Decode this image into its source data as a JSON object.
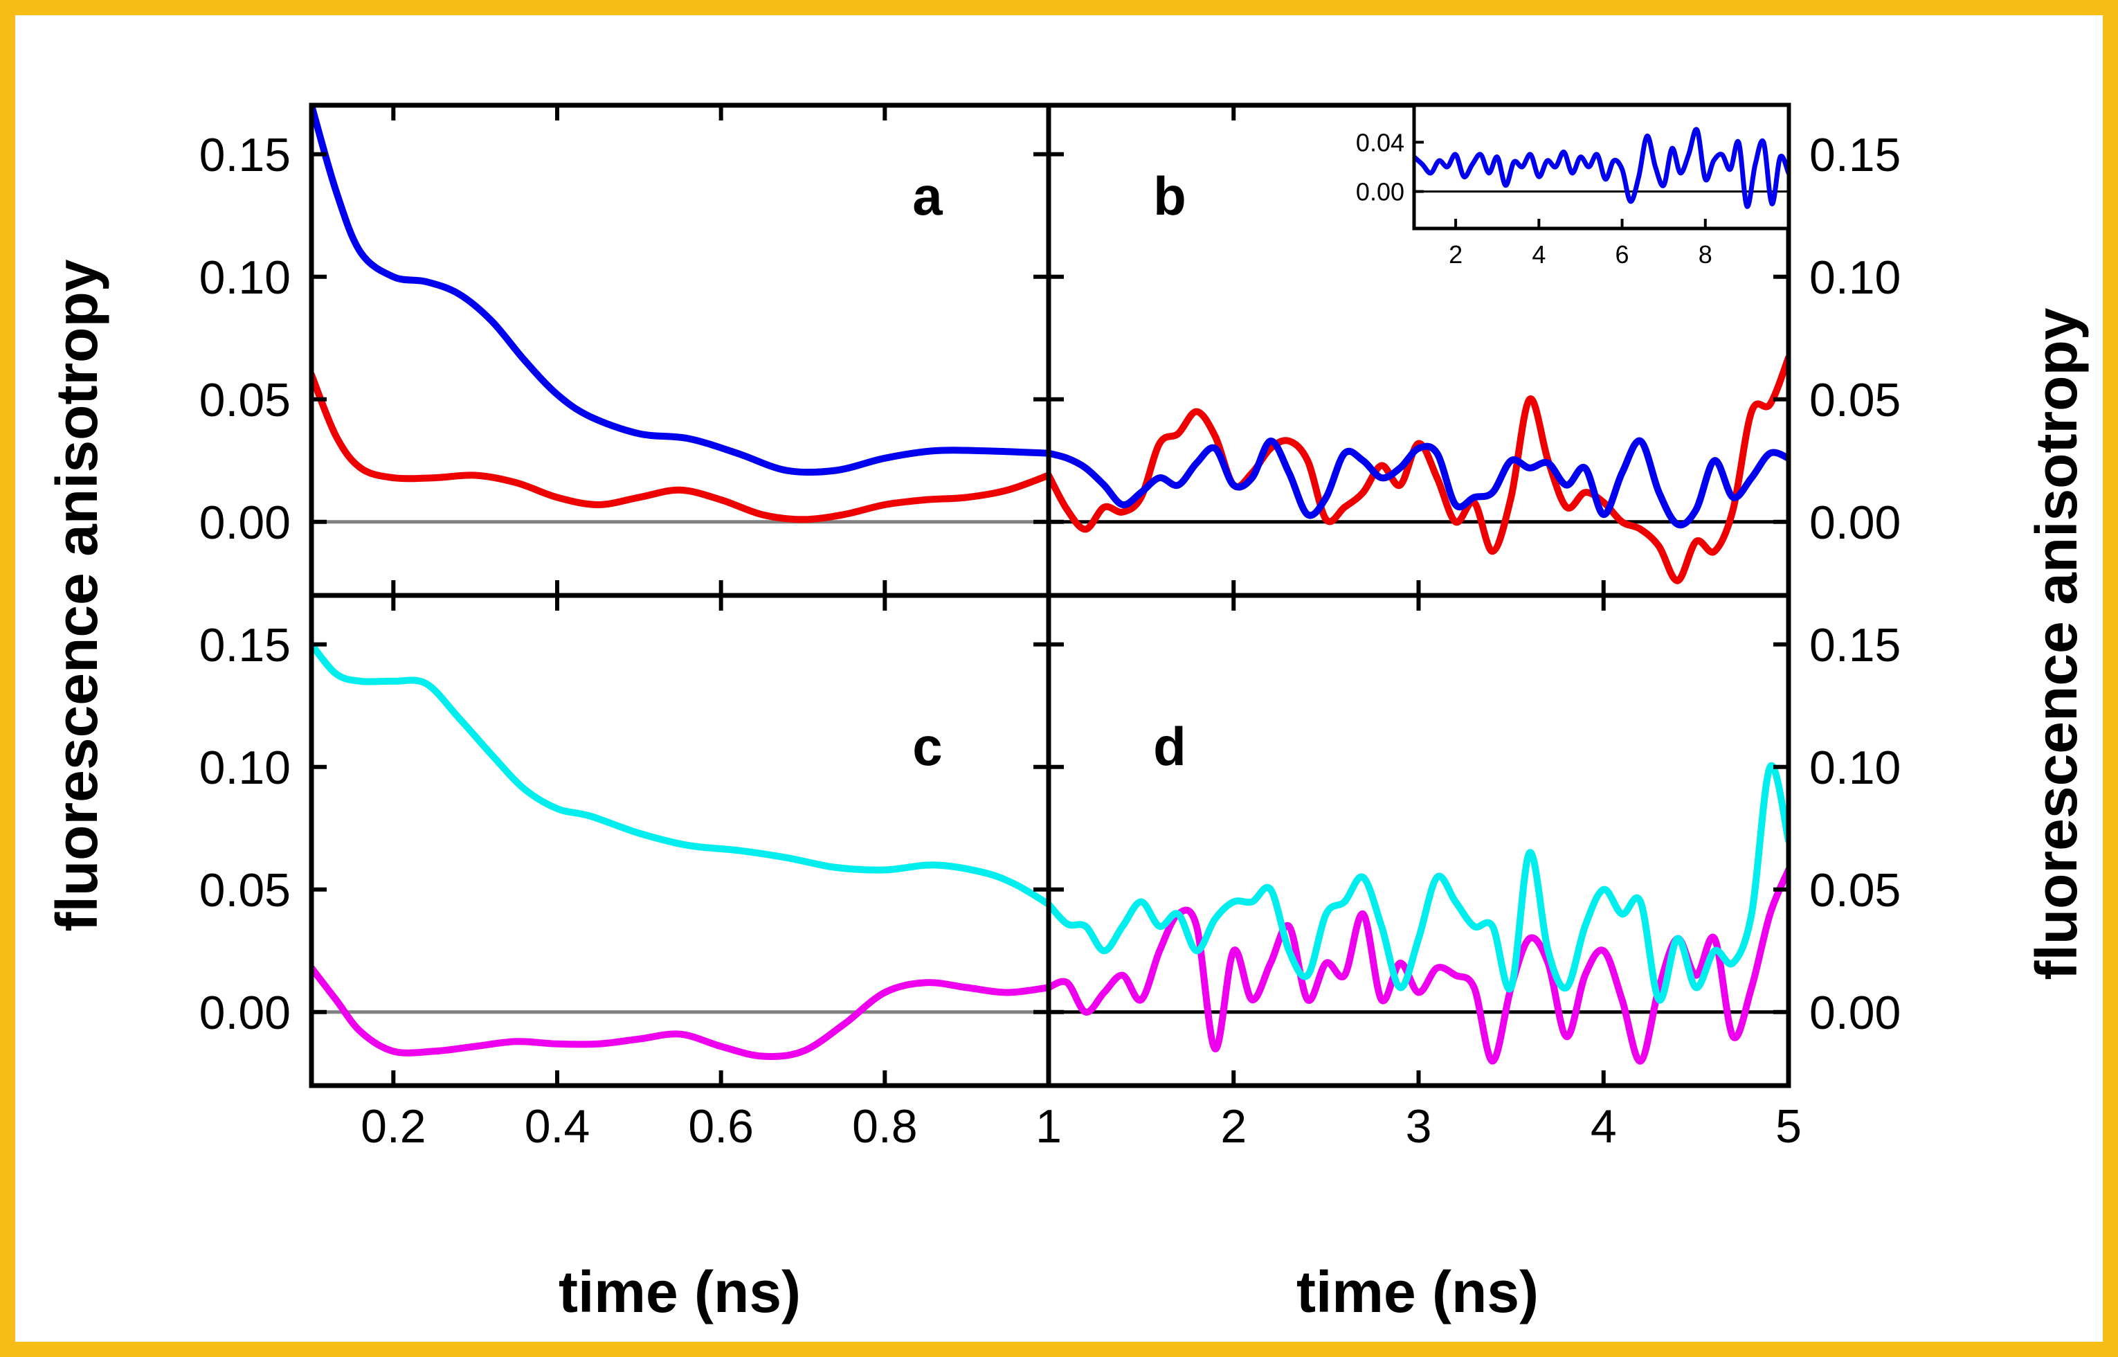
{
  "chart_data": {
    "type": "line",
    "title": "",
    "ylabel_left": "fluorescence anisotropy",
    "ylabel_right": "fluorescence anisotropy",
    "xlabel_left": "time (ns)",
    "xlabel_right": "time (ns)",
    "border_color": "#f6bd16",
    "panels": [
      {
        "id": "a",
        "label": "a",
        "xlim": [
          0.1,
          1.0
        ],
        "ylim": [
          -0.03,
          0.17
        ],
        "yticks": [
          0.0,
          0.05,
          0.1,
          0.15
        ],
        "ytick_labels": [
          "0.00",
          "0.05",
          "0.10",
          "0.15"
        ],
        "xticks": [
          0.2,
          0.4,
          0.6,
          0.8
        ],
        "zero_line_color": "#808080",
        "series": [
          {
            "name": "blue",
            "color": "#0000ee",
            "x": [
              0.1,
              0.13,
              0.16,
              0.2,
              0.24,
              0.28,
              0.32,
              0.36,
              0.4,
              0.44,
              0.5,
              0.56,
              0.62,
              0.68,
              0.74,
              0.8,
              0.86,
              0.92,
              1.0
            ],
            "y": [
              0.17,
              0.135,
              0.11,
              0.1,
              0.098,
              0.093,
              0.082,
              0.066,
              0.052,
              0.043,
              0.036,
              0.034,
              0.028,
              0.021,
              0.021,
              0.026,
              0.029,
              0.029,
              0.028
            ]
          },
          {
            "name": "red",
            "color": "#ee0000",
            "x": [
              0.1,
              0.13,
              0.16,
              0.2,
              0.25,
              0.3,
              0.35,
              0.4,
              0.45,
              0.5,
              0.55,
              0.6,
              0.65,
              0.7,
              0.75,
              0.8,
              0.85,
              0.9,
              0.95,
              1.0
            ],
            "y": [
              0.06,
              0.035,
              0.022,
              0.018,
              0.018,
              0.019,
              0.016,
              0.01,
              0.007,
              0.01,
              0.013,
              0.009,
              0.003,
              0.001,
              0.003,
              0.007,
              0.009,
              0.01,
              0.013,
              0.019
            ]
          }
        ]
      },
      {
        "id": "b",
        "label": "b",
        "xlim": [
          1,
          5
        ],
        "ylim": [
          -0.03,
          0.17
        ],
        "yticks": [
          0.0,
          0.05,
          0.1,
          0.15
        ],
        "ytick_labels": [
          "0.00",
          "0.05",
          "0.10",
          "0.15"
        ],
        "xticks": [
          1,
          2,
          3,
          4,
          5
        ],
        "zero_line_color": "#000000",
        "series": [
          {
            "name": "red",
            "color": "#ee0000",
            "x": [
              1.0,
              1.1,
              1.2,
              1.3,
              1.4,
              1.5,
              1.6,
              1.7,
              1.8,
              1.9,
              2.0,
              2.1,
              2.2,
              2.3,
              2.4,
              2.5,
              2.6,
              2.7,
              2.8,
              2.9,
              3.0,
              3.1,
              3.2,
              3.3,
              3.4,
              3.5,
              3.6,
              3.7,
              3.8,
              3.9,
              4.0,
              4.1,
              4.2,
              4.3,
              4.4,
              4.5,
              4.6,
              4.7,
              4.8,
              4.9,
              5.0
            ],
            "y": [
              0.019,
              0.005,
              -0.003,
              0.006,
              0.004,
              0.01,
              0.032,
              0.036,
              0.045,
              0.035,
              0.015,
              0.02,
              0.03,
              0.033,
              0.025,
              0.001,
              0.006,
              0.012,
              0.023,
              0.015,
              0.032,
              0.018,
              0.0,
              0.008,
              -0.012,
              0.01,
              0.05,
              0.025,
              0.006,
              0.012,
              0.008,
              0.0,
              -0.003,
              -0.01,
              -0.024,
              -0.008,
              -0.012,
              0.005,
              0.045,
              0.048,
              0.067
            ]
          },
          {
            "name": "blue",
            "color": "#0000ee",
            "x": [
              1.0,
              1.1,
              1.2,
              1.3,
              1.4,
              1.5,
              1.6,
              1.7,
              1.8,
              1.9,
              2.0,
              2.1,
              2.2,
              2.3,
              2.4,
              2.5,
              2.6,
              2.7,
              2.8,
              2.9,
              3.0,
              3.1,
              3.2,
              3.3,
              3.4,
              3.5,
              3.6,
              3.7,
              3.8,
              3.9,
              4.0,
              4.1,
              4.2,
              4.3,
              4.4,
              4.5,
              4.6,
              4.7,
              4.8,
              4.9,
              5.0
            ],
            "y": [
              0.028,
              0.026,
              0.022,
              0.015,
              0.007,
              0.012,
              0.018,
              0.015,
              0.024,
              0.03,
              0.015,
              0.018,
              0.033,
              0.02,
              0.003,
              0.01,
              0.028,
              0.025,
              0.018,
              0.022,
              0.03,
              0.028,
              0.007,
              0.01,
              0.012,
              0.025,
              0.022,
              0.024,
              0.015,
              0.022,
              0.003,
              0.02,
              0.033,
              0.012,
              -0.001,
              0.005,
              0.025,
              0.01,
              0.018,
              0.028,
              0.026
            ]
          }
        ],
        "inset": {
          "xlim": [
            1,
            10
          ],
          "ylim": [
            -0.03,
            0.07
          ],
          "xticks": [
            2,
            4,
            6,
            8
          ],
          "yticks": [
            0.0,
            0.04
          ],
          "ytick_labels": [
            "0.00",
            "0.04"
          ],
          "series": [
            {
              "name": "blue",
              "color": "#0000ee",
              "x": [
                1.0,
                1.2,
                1.4,
                1.6,
                1.8,
                2.0,
                2.2,
                2.4,
                2.6,
                2.8,
                3.0,
                3.2,
                3.4,
                3.6,
                3.8,
                4.0,
                4.2,
                4.4,
                4.6,
                4.8,
                5.0,
                5.2,
                5.4,
                5.6,
                5.8,
                6.0,
                6.2,
                6.4,
                6.6,
                6.8,
                7.0,
                7.2,
                7.4,
                7.6,
                7.8,
                8.0,
                8.2,
                8.4,
                8.6,
                8.8,
                9.0,
                9.2,
                9.4,
                9.6,
                9.8,
                10.0
              ],
              "y": [
                0.028,
                0.022,
                0.015,
                0.025,
                0.02,
                0.03,
                0.012,
                0.022,
                0.03,
                0.015,
                0.028,
                0.005,
                0.024,
                0.02,
                0.03,
                0.012,
                0.025,
                0.02,
                0.032,
                0.015,
                0.028,
                0.02,
                0.03,
                0.01,
                0.025,
                0.018,
                -0.008,
                0.012,
                0.045,
                0.02,
                0.005,
                0.035,
                0.015,
                0.03,
                0.05,
                0.01,
                0.025,
                0.03,
                0.018,
                0.04,
                -0.012,
                0.022,
                0.04,
                -0.01,
                0.028,
                0.015
              ]
            }
          ]
        }
      },
      {
        "id": "c",
        "label": "c",
        "xlim": [
          0.1,
          1.0
        ],
        "ylim": [
          -0.03,
          0.17
        ],
        "yticks": [
          0.0,
          0.05,
          0.1,
          0.15
        ],
        "ytick_labels": [
          "0.00",
          "0.05",
          "0.10",
          "0.15"
        ],
        "xticks": [
          0.2,
          0.4,
          0.6,
          0.8
        ],
        "xtick_labels": [
          "0.2",
          "0.4",
          "0.6",
          "0.8"
        ],
        "zero_line_color": "#808080",
        "series": [
          {
            "name": "cyan",
            "color": "#00eeee",
            "x": [
              0.1,
              0.13,
              0.16,
              0.2,
              0.24,
              0.28,
              0.32,
              0.36,
              0.4,
              0.44,
              0.5,
              0.56,
              0.62,
              0.68,
              0.74,
              0.8,
              0.86,
              0.92,
              0.96,
              1.0
            ],
            "y": [
              0.15,
              0.138,
              0.135,
              0.135,
              0.134,
              0.12,
              0.105,
              0.091,
              0.083,
              0.08,
              0.073,
              0.068,
              0.066,
              0.063,
              0.059,
              0.058,
              0.06,
              0.057,
              0.052,
              0.044
            ]
          },
          {
            "name": "magenta",
            "color": "#ee00ee",
            "x": [
              0.1,
              0.13,
              0.16,
              0.2,
              0.25,
              0.3,
              0.35,
              0.4,
              0.45,
              0.5,
              0.55,
              0.6,
              0.65,
              0.7,
              0.75,
              0.8,
              0.85,
              0.9,
              0.95,
              1.0
            ],
            "y": [
              0.018,
              0.005,
              -0.008,
              -0.016,
              -0.016,
              -0.014,
              -0.012,
              -0.013,
              -0.013,
              -0.011,
              -0.009,
              -0.014,
              -0.018,
              -0.016,
              -0.005,
              0.008,
              0.012,
              0.01,
              0.008,
              0.01
            ]
          }
        ]
      },
      {
        "id": "d",
        "label": "d",
        "xlim": [
          1,
          5
        ],
        "ylim": [
          -0.03,
          0.17
        ],
        "yticks": [
          0.0,
          0.05,
          0.1,
          0.15
        ],
        "ytick_labels": [
          "0.00",
          "0.05",
          "0.10",
          "0.15"
        ],
        "xticks": [
          1,
          2,
          3,
          4,
          5
        ],
        "xtick_labels": [
          "1",
          "2",
          "3",
          "4",
          "5"
        ],
        "zero_line_color": "#000000",
        "series": [
          {
            "name": "magenta",
            "color": "#ee00ee",
            "x": [
              1.0,
              1.1,
              1.2,
              1.3,
              1.4,
              1.5,
              1.6,
              1.7,
              1.8,
              1.9,
              2.0,
              2.1,
              2.2,
              2.3,
              2.4,
              2.5,
              2.6,
              2.7,
              2.8,
              2.9,
              3.0,
              3.1,
              3.2,
              3.3,
              3.4,
              3.5,
              3.6,
              3.7,
              3.8,
              3.9,
              4.0,
              4.1,
              4.2,
              4.3,
              4.4,
              4.5,
              4.6,
              4.7,
              4.8,
              4.9,
              5.0
            ],
            "y": [
              0.01,
              0.012,
              0.0,
              0.008,
              0.015,
              0.005,
              0.025,
              0.04,
              0.035,
              -0.015,
              0.025,
              0.005,
              0.02,
              0.035,
              0.005,
              0.02,
              0.015,
              0.04,
              0.005,
              0.02,
              0.008,
              0.018,
              0.015,
              0.01,
              -0.02,
              0.01,
              0.03,
              0.02,
              -0.01,
              0.015,
              0.025,
              0.005,
              -0.02,
              0.01,
              0.03,
              0.015,
              0.03,
              -0.01,
              0.01,
              0.04,
              0.058
            ]
          },
          {
            "name": "cyan",
            "color": "#00eeee",
            "x": [
              1.0,
              1.1,
              1.2,
              1.3,
              1.4,
              1.5,
              1.6,
              1.7,
              1.8,
              1.9,
              2.0,
              2.1,
              2.2,
              2.3,
              2.4,
              2.5,
              2.6,
              2.7,
              2.8,
              2.9,
              3.0,
              3.1,
              3.2,
              3.3,
              3.4,
              3.5,
              3.6,
              3.7,
              3.8,
              3.9,
              4.0,
              4.1,
              4.2,
              4.3,
              4.4,
              4.5,
              4.6,
              4.7,
              4.8,
              4.9,
              5.0
            ],
            "y": [
              0.044,
              0.036,
              0.035,
              0.025,
              0.035,
              0.045,
              0.035,
              0.04,
              0.025,
              0.038,
              0.045,
              0.045,
              0.05,
              0.025,
              0.015,
              0.04,
              0.045,
              0.055,
              0.035,
              0.01,
              0.03,
              0.055,
              0.045,
              0.035,
              0.035,
              0.01,
              0.065,
              0.025,
              0.01,
              0.035,
              0.05,
              0.04,
              0.045,
              0.005,
              0.03,
              0.01,
              0.025,
              0.02,
              0.04,
              0.1,
              0.07
            ]
          }
        ]
      }
    ]
  }
}
